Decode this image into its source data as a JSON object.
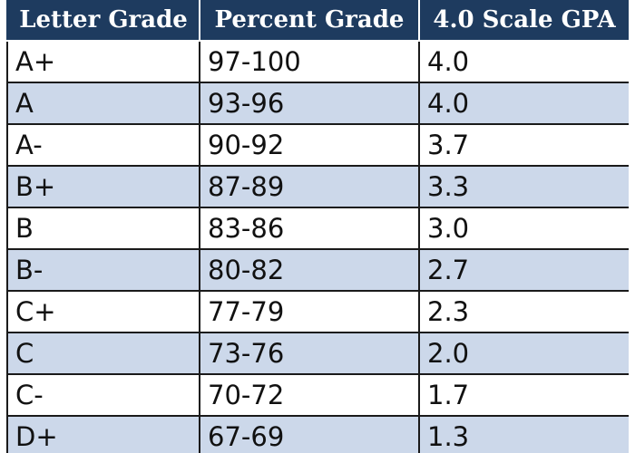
{
  "table": {
    "headers": [
      "Letter Grade",
      "Percent Grade",
      "4.0 Scale GPA"
    ],
    "rows": [
      [
        "A+",
        "97-100",
        "4.0"
      ],
      [
        "A",
        "93-96",
        "4.0"
      ],
      [
        "A-",
        "90-92",
        "3.7"
      ],
      [
        "B+",
        "87-89",
        "3.3"
      ],
      [
        "B",
        "83-86",
        "3.0"
      ],
      [
        "B-",
        "80-82",
        "2.7"
      ],
      [
        "C+",
        "77-79",
        "2.3"
      ],
      [
        "C",
        "73-76",
        "2.0"
      ],
      [
        "C-",
        "70-72",
        "1.7"
      ],
      [
        "D+",
        "67-69",
        "1.3"
      ]
    ]
  },
  "colors": {
    "header_bg": "#1e3b5f",
    "alt_row_bg": "#ccd8ea",
    "row_bg": "#ffffff"
  }
}
